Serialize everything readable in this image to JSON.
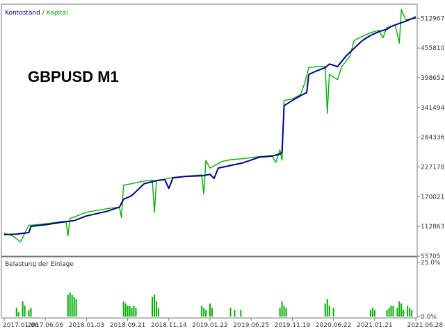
{
  "chart_data": [
    {
      "type": "line",
      "legend": {
        "balance_label": "Kontostand",
        "separator": " / ",
        "equity_label": "Kapital",
        "placement": "top-left"
      },
      "overlay_text": "GBPUSD M1",
      "ylim": [
        55705,
        540000
      ],
      "y_ticks": [
        "512967",
        "455810",
        "398652",
        "341494",
        "284336",
        "227178",
        "170021",
        "112863",
        "55705"
      ],
      "y_tick_values": [
        512967,
        455810,
        398652,
        341494,
        284336,
        227178,
        170021,
        112863,
        55705
      ],
      "grid": false,
      "colors": {
        "balance": "#00008b",
        "equity": "#00b000",
        "bars": "#00b000",
        "axis": "#777777"
      },
      "series": [
        {
          "name": "Kontostand",
          "points": [
            [
              0,
              97000
            ],
            [
              0.03,
              98000
            ],
            [
              0.06,
              101000
            ],
            [
              0.065,
              113000
            ],
            [
              0.1,
              116000
            ],
            [
              0.14,
              121000
            ],
            [
              0.17,
              124000
            ],
            [
              0.2,
              133000
            ],
            [
              0.25,
              142000
            ],
            [
              0.28,
              150000
            ],
            [
              0.29,
              165000
            ],
            [
              0.31,
              172000
            ],
            [
              0.34,
              195000
            ],
            [
              0.37,
              201000
            ],
            [
              0.39,
              203000
            ],
            [
              0.4,
              186000
            ],
            [
              0.41,
              206000
            ],
            [
              0.44,
              209000
            ],
            [
              0.48,
              210000
            ],
            [
              0.5,
              213000
            ],
            [
              0.51,
              205000
            ],
            [
              0.52,
              225000
            ],
            [
              0.55,
              230000
            ],
            [
              0.58,
              235000
            ],
            [
              0.62,
              246000
            ],
            [
              0.65,
              248000
            ],
            [
              0.67,
              252000
            ],
            [
              0.675,
              255000
            ],
            [
              0.68,
              345000
            ],
            [
              0.7,
              355000
            ],
            [
              0.72,
              364000
            ],
            [
              0.735,
              370000
            ],
            [
              0.74,
              405000
            ],
            [
              0.76,
              412000
            ],
            [
              0.78,
              418000
            ],
            [
              0.79,
              425000
            ],
            [
              0.81,
              420000
            ],
            [
              0.83,
              440000
            ],
            [
              0.85,
              455000
            ],
            [
              0.87,
              470000
            ],
            [
              0.89,
              480000
            ],
            [
              0.91,
              487000
            ],
            [
              0.93,
              492000
            ],
            [
              0.94,
              497000
            ],
            [
              0.96,
              503000
            ],
            [
              0.975,
              507000
            ],
            [
              0.99,
              512000
            ],
            [
              1.0,
              514000
            ]
          ]
        },
        {
          "name": "Kapital",
          "points": [
            [
              0,
              100000
            ],
            [
              0.02,
              95000
            ],
            [
              0.04,
              83000
            ],
            [
              0.05,
              100000
            ],
            [
              0.06,
              115000
            ],
            [
              0.09,
              117000
            ],
            [
              0.12,
              120000
            ],
            [
              0.15,
              123000
            ],
            [
              0.155,
              95000
            ],
            [
              0.16,
              128000
            ],
            [
              0.2,
              140000
            ],
            [
              0.25,
              147000
            ],
            [
              0.28,
              150000
            ],
            [
              0.285,
              130000
            ],
            [
              0.29,
              192000
            ],
            [
              0.31,
              195000
            ],
            [
              0.34,
              200000
            ],
            [
              0.36,
              202000
            ],
            [
              0.365,
              140000
            ],
            [
              0.37,
              200000
            ],
            [
              0.41,
              207000
            ],
            [
              0.45,
              210000
            ],
            [
              0.48,
              212000
            ],
            [
              0.485,
              175000
            ],
            [
              0.49,
              240000
            ],
            [
              0.5,
              225000
            ],
            [
              0.53,
              238000
            ],
            [
              0.55,
              241000
            ],
            [
              0.58,
              243000
            ],
            [
              0.62,
              247000
            ],
            [
              0.65,
              249000
            ],
            [
              0.66,
              236000
            ],
            [
              0.67,
              260000
            ],
            [
              0.675,
              240000
            ],
            [
              0.68,
              355000
            ],
            [
              0.7,
              358000
            ],
            [
              0.72,
              366000
            ],
            [
              0.73,
              388000
            ],
            [
              0.74,
              418000
            ],
            [
              0.76,
              420000
            ],
            [
              0.78,
              420000
            ],
            [
              0.785,
              330000
            ],
            [
              0.79,
              405000
            ],
            [
              0.81,
              395000
            ],
            [
              0.82,
              420000
            ],
            [
              0.84,
              440000
            ],
            [
              0.85,
              470000
            ],
            [
              0.87,
              478000
            ],
            [
              0.89,
              485000
            ],
            [
              0.91,
              490000
            ],
            [
              0.92,
              475000
            ],
            [
              0.93,
              495000
            ],
            [
              0.95,
              500000
            ],
            [
              0.96,
              465000
            ],
            [
              0.965,
              530000
            ],
            [
              0.975,
              510000
            ],
            [
              0.99,
              512000
            ],
            [
              1.0,
              517000
            ]
          ]
        }
      ],
      "x_ticks": [
        "2017.01.06",
        "2017.06.06",
        "2018.01.03",
        "2018.09.21",
        "2018.11.14",
        "2019.01.22",
        "2019.06.25",
        "2019.11.19",
        "2020.06.22",
        "2021.01.21",
        "2021.06.28"
      ]
    },
    {
      "type": "bar",
      "title": "Belastung der Einlage",
      "y_ticks": [
        "25.0%",
        "0.0%"
      ],
      "ylim": [
        0,
        25
      ],
      "values": [
        [
          0.03,
          4
        ],
        [
          0.035,
          2
        ],
        [
          0.045,
          7
        ],
        [
          0.05,
          5
        ],
        [
          0.06,
          3
        ],
        [
          0.065,
          4
        ],
        [
          0.155,
          10
        ],
        [
          0.16,
          11
        ],
        [
          0.165,
          10
        ],
        [
          0.17,
          9
        ],
        [
          0.175,
          8
        ],
        [
          0.29,
          7
        ],
        [
          0.295,
          6
        ],
        [
          0.3,
          5
        ],
        [
          0.305,
          5
        ],
        [
          0.31,
          4
        ],
        [
          0.315,
          5
        ],
        [
          0.32,
          4
        ],
        [
          0.36,
          9
        ],
        [
          0.365,
          10
        ],
        [
          0.37,
          7
        ],
        [
          0.375,
          4
        ],
        [
          0.48,
          5
        ],
        [
          0.485,
          4
        ],
        [
          0.49,
          3
        ],
        [
          0.5,
          6
        ],
        [
          0.505,
          4
        ],
        [
          0.55,
          4
        ],
        [
          0.56,
          3
        ],
        [
          0.575,
          3
        ],
        [
          0.67,
          4
        ],
        [
          0.675,
          7
        ],
        [
          0.68,
          5
        ],
        [
          0.685,
          4
        ],
        [
          0.78,
          6
        ],
        [
          0.785,
          8
        ],
        [
          0.79,
          5
        ],
        [
          0.8,
          4
        ],
        [
          0.89,
          3
        ],
        [
          0.895,
          4
        ],
        [
          0.9,
          3
        ],
        [
          0.93,
          3
        ],
        [
          0.935,
          4
        ],
        [
          0.94,
          5
        ],
        [
          0.945,
          5
        ],
        [
          0.955,
          4
        ],
        [
          0.96,
          7
        ],
        [
          0.965,
          6
        ],
        [
          0.97,
          3
        ],
        [
          0.98,
          5
        ],
        [
          0.985,
          4
        ],
        [
          0.99,
          3
        ]
      ]
    }
  ]
}
